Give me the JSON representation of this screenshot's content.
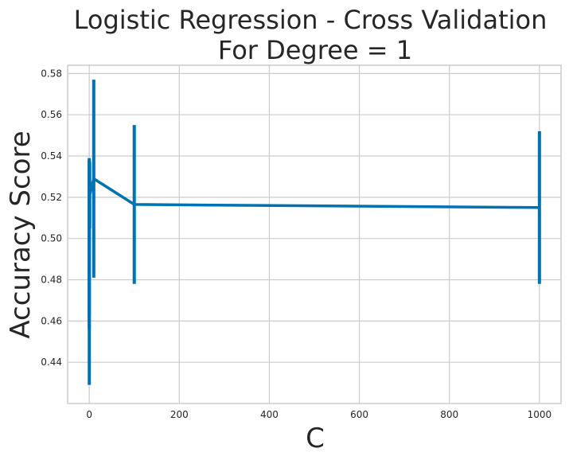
{
  "chart_data": {
    "type": "line",
    "title_lines": [
      "Logistic Regression - Cross Validation",
      "For Degree = 1"
    ],
    "xlabel": "C",
    "ylabel": "Accuracy Score",
    "xlim": [
      -48,
      1048
    ],
    "ylim": [
      0.42,
      0.584
    ],
    "x_ticks": [
      0,
      200,
      400,
      600,
      800,
      1000
    ],
    "y_ticks": [
      0.44,
      0.46,
      0.48,
      0.5,
      0.52,
      0.54,
      0.56,
      0.58
    ],
    "grid": true,
    "legend": "none",
    "series_color": "#0072b2",
    "series": [
      {
        "x": [
          0.001,
          0.01,
          0.1,
          1,
          10,
          100,
          1000
        ],
        "y": [
          0.497,
          0.5,
          0.485,
          0.521,
          0.529,
          0.5165,
          0.515
        ],
        "err_low": [
          0.456,
          0.462,
          0.429,
          0.505,
          0.481,
          0.478,
          0.478
        ],
        "err_high": [
          0.538,
          0.538,
          0.539,
          0.537,
          0.577,
          0.555,
          0.552
        ]
      }
    ]
  }
}
